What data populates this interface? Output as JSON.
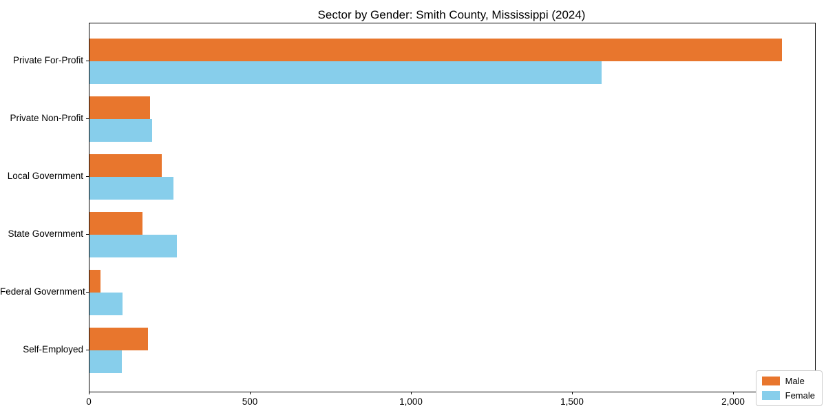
{
  "chart_data": {
    "type": "bar",
    "orientation": "horizontal",
    "title": "Sector by Gender: Smith County, Mississippi (2024)",
    "categories": [
      "Private For-Profit",
      "Private Non-Profit",
      "Local Government",
      "State Government",
      "Federal Government",
      "Self-Employed"
    ],
    "series": [
      {
        "name": "Male",
        "color": "#e8762d",
        "values": [
          2150,
          188,
          225,
          165,
          34,
          182
        ]
      },
      {
        "name": "Female",
        "color": "#87ceeb",
        "values": [
          1590,
          195,
          260,
          272,
          103,
          100
        ]
      }
    ],
    "xlabel": "",
    "ylabel": "",
    "xlim": [
      0,
      2252
    ],
    "xticks": [
      0,
      500,
      1000,
      1500,
      2000
    ],
    "xtick_labels": [
      "0",
      "500",
      "1,000",
      "1,500",
      "2,000"
    ],
    "grid": false,
    "legend_position": "lower right",
    "colors": {
      "male": "#e8762d",
      "female": "#87ceeb",
      "text": "#000000",
      "spine": "#000000",
      "legend_border": "#cccccc",
      "background": "#ffffff"
    }
  }
}
